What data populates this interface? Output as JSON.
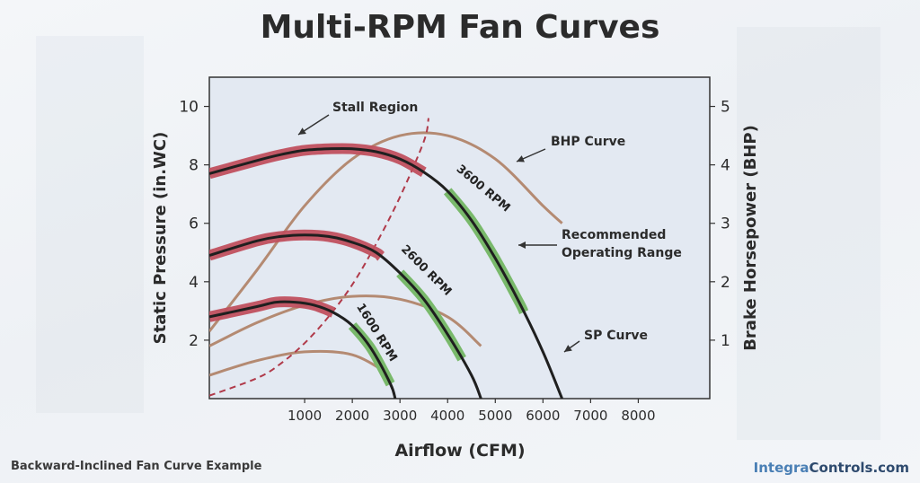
{
  "chart_data": {
    "type": "line",
    "title": "Multi-RPM Fan Curves",
    "xlabel": "Airflow (CFM)",
    "ylabel": "Static Pressure (in.WC)",
    "ylabel_right": "Brake Horsepower (BHP)",
    "xlim": [
      -1000,
      9500
    ],
    "ylim": [
      0,
      11
    ],
    "ylim_right": [
      0,
      5.5
    ],
    "x_ticks": [
      1000,
      2000,
      3000,
      4000,
      5000,
      6000,
      7000,
      8000
    ],
    "y_ticks": [
      2,
      4,
      6,
      8,
      10
    ],
    "y_ticks_right": [
      1,
      2,
      3,
      4,
      5
    ],
    "sp_curves": [
      {
        "name": "1600 RPM",
        "label": "1600 RPM",
        "x": [
          -1000,
          0,
          400,
          800,
          1200,
          1600,
          2000,
          2400,
          2800,
          2900
        ],
        "y": [
          2.8,
          3.15,
          3.3,
          3.3,
          3.2,
          2.95,
          2.5,
          1.7,
          0.5,
          0
        ],
        "stall_x_max": 1600,
        "recommended_x": [
          2000,
          2800
        ]
      },
      {
        "name": "2600 RPM",
        "label": "2600 RPM",
        "x": [
          -1000,
          0,
          500,
          1000,
          1500,
          2000,
          2500,
          3000,
          3500,
          4000,
          4500,
          4700
        ],
        "y": [
          4.9,
          5.4,
          5.55,
          5.6,
          5.55,
          5.35,
          5.0,
          4.3,
          3.4,
          2.2,
          0.8,
          0
        ],
        "stall_x_max": 2600,
        "recommended_x": [
          3000,
          4300
        ]
      },
      {
        "name": "3600 RPM",
        "label": "3600 RPM",
        "x": [
          -1000,
          0,
          500,
          1000,
          1500,
          2000,
          2500,
          3000,
          3500,
          4000,
          4500,
          5000,
          5500,
          6000,
          6400
        ],
        "y": [
          7.7,
          8.15,
          8.35,
          8.5,
          8.55,
          8.55,
          8.45,
          8.2,
          7.75,
          7.1,
          6.1,
          4.8,
          3.3,
          1.6,
          0
        ],
        "stall_x_max": 3500,
        "recommended_x": [
          4000,
          5600
        ]
      }
    ],
    "bhp_curves": [
      {
        "name": "1600 RPM BHP",
        "x": [
          -1000,
          0,
          1000,
          2000,
          2800
        ],
        "y_bhp": [
          0.4,
          0.65,
          0.8,
          0.75,
          0.4
        ]
      },
      {
        "name": "2600 RPM BHP",
        "x": [
          -1000,
          0,
          1000,
          2000,
          3000,
          4000,
          4700
        ],
        "y_bhp": [
          0.9,
          1.3,
          1.6,
          1.75,
          1.7,
          1.4,
          0.9
        ]
      },
      {
        "name": "3600 RPM BHP",
        "x": [
          -1000,
          0,
          1000,
          2000,
          3000,
          4000,
          5000,
          6000,
          6400
        ],
        "y_bhp": [
          1.15,
          2.2,
          3.3,
          4.1,
          4.5,
          4.5,
          4.1,
          3.3,
          3.0
        ]
      }
    ],
    "stall_line": {
      "x": [
        -1000,
        0,
        500,
        1000,
        1500,
        2000,
        2500,
        3000,
        3500,
        3600
      ],
      "y": [
        0.1,
        0.7,
        1.2,
        1.9,
        2.8,
        3.9,
        5.3,
        6.9,
        8.8,
        9.6
      ]
    },
    "annotations": [
      {
        "text": "Stall Region"
      },
      {
        "text": "BHP Curve"
      },
      {
        "text": "Recommended"
      },
      {
        "text": "Operating Range"
      },
      {
        "text": "SP Curve"
      }
    ],
    "colors": {
      "plot_bg": "#e3e9f2",
      "sp_curve": "#1f1f1f",
      "stall_band": "#c0505e",
      "recommended_band": "#79b96b",
      "bhp_curve": "#b48a72",
      "stall_line": "#b03a4a"
    }
  },
  "footer": {
    "caption": "Backward-Inclined Fan Curve Example",
    "brand_part1": "Integra",
    "brand_part2": "Controls.com"
  }
}
